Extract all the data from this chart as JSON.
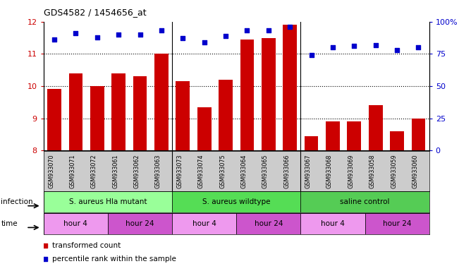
{
  "title": "GDS4582 / 1454656_at",
  "samples": [
    "GSM933070",
    "GSM933071",
    "GSM933072",
    "GSM933061",
    "GSM933062",
    "GSM933063",
    "GSM933073",
    "GSM933074",
    "GSM933075",
    "GSM933064",
    "GSM933065",
    "GSM933066",
    "GSM933067",
    "GSM933068",
    "GSM933069",
    "GSM933058",
    "GSM933059",
    "GSM933060"
  ],
  "bar_values": [
    9.9,
    10.4,
    10.0,
    10.4,
    10.3,
    11.0,
    10.15,
    9.35,
    10.2,
    11.45,
    11.5,
    11.9,
    8.45,
    8.9,
    8.9,
    9.4,
    8.6,
    9.0
  ],
  "dot_values": [
    86,
    91,
    88,
    90,
    90,
    93,
    87,
    84,
    89,
    93,
    93,
    96,
    74,
    80,
    81,
    82,
    78,
    80
  ],
  "bar_color": "#cc0000",
  "dot_color": "#0000cc",
  "ylim_left": [
    8,
    12
  ],
  "ylim_right": [
    0,
    100
  ],
  "yticks_left": [
    8,
    9,
    10,
    11,
    12
  ],
  "yticks_right": [
    0,
    25,
    50,
    75,
    100
  ],
  "ytick_labels_right": [
    "0",
    "25",
    "50",
    "75",
    "100%"
  ],
  "infection_groups": [
    {
      "label": "S. aureus Hla mutant",
      "start": 0,
      "end": 6,
      "color": "#99ff99"
    },
    {
      "label": "S. aureus wildtype",
      "start": 6,
      "end": 12,
      "color": "#55dd55"
    },
    {
      "label": "saline control",
      "start": 12,
      "end": 18,
      "color": "#55cc55"
    }
  ],
  "time_groups": [
    {
      "label": "hour 4",
      "start": 0,
      "end": 3,
      "color": "#ee99ee"
    },
    {
      "label": "hour 24",
      "start": 3,
      "end": 6,
      "color": "#cc55cc"
    },
    {
      "label": "hour 4",
      "start": 6,
      "end": 9,
      "color": "#ee99ee"
    },
    {
      "label": "hour 24",
      "start": 9,
      "end": 12,
      "color": "#cc55cc"
    },
    {
      "label": "hour 4",
      "start": 12,
      "end": 15,
      "color": "#ee99ee"
    },
    {
      "label": "hour 24",
      "start": 15,
      "end": 18,
      "color": "#cc55cc"
    }
  ],
  "tick_area_bg": "#cccccc",
  "n_samples": 18
}
